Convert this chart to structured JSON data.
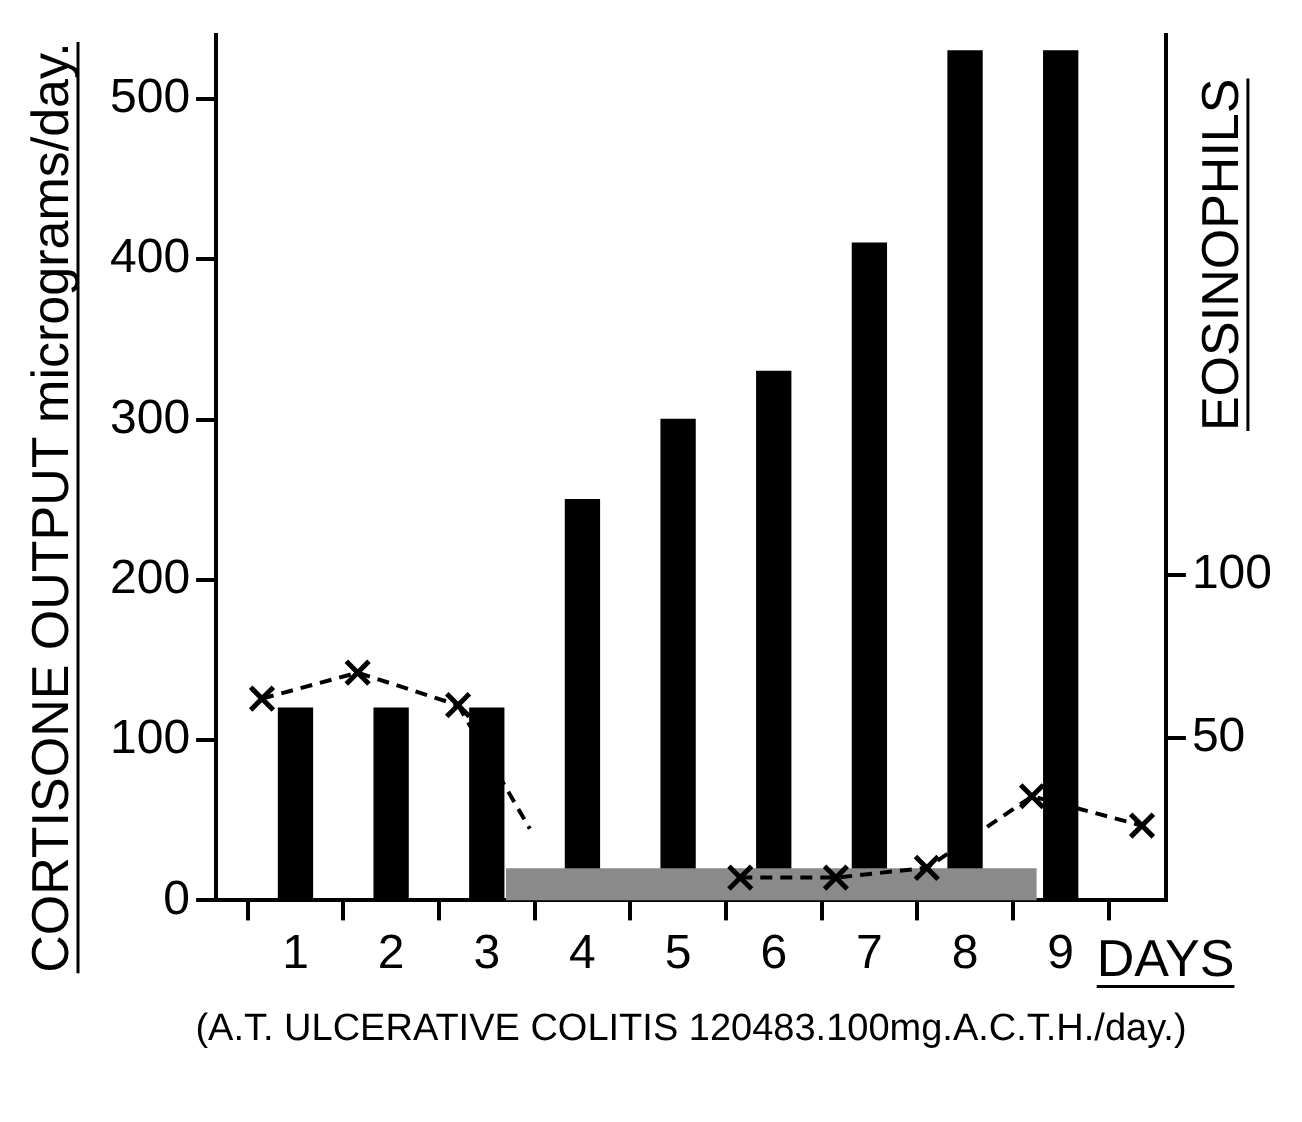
{
  "chart_data": {
    "type": "bar",
    "xlabel": "DAYS",
    "ylabel": "CORTISONE OUTPUT micrograms/day.",
    "y2label": "EOSINOPHILS",
    "annotations": [
      "(A.T. ULCERATIVE COLITIS 120483.100mg.A.C.T.H./day.)"
    ],
    "xlim": [
      0.17,
      10.1
    ],
    "xticks": [
      1,
      2,
      3,
      4,
      5,
      6,
      7,
      8,
      9
    ],
    "ylim": [
      0,
      540
    ],
    "yticks": [
      0,
      100,
      200,
      300,
      400,
      500
    ],
    "y2lim": [
      0,
      266
    ],
    "y2ticks": [
      50,
      100
    ],
    "grid": false,
    "legend": false,
    "series": [
      {
        "color": "#000000",
        "x": [
          1,
          2,
          3,
          4,
          5,
          6,
          7,
          8,
          9
        ],
        "values": [
          120,
          120,
          120,
          250,
          300,
          330,
          410,
          530,
          530
        ]
      },
      {
        "type": "area",
        "color": "#8a8a8a",
        "x": [
          3.2,
          8.75
        ],
        "values": [
          20,
          20
        ]
      },
      {
        "type": "line",
        "axis": "y2",
        "color": "#000000",
        "marker": "cross",
        "line_style": "dashed",
        "x": [
          0.65,
          1.65,
          2.7,
          4.5,
          5.65,
          6.65,
          7.6,
          8.7,
          9.85
        ],
        "values": [
          62,
          70,
          60,
          null,
          7,
          7,
          10,
          32,
          23
        ]
      },
      {
        "type": "line",
        "axis": "y2",
        "color": "#000000",
        "marker": "none",
        "line_style": "dashed",
        "x": [
          2.7,
          3.45
        ],
        "values": [
          60,
          22
        ]
      }
    ]
  }
}
